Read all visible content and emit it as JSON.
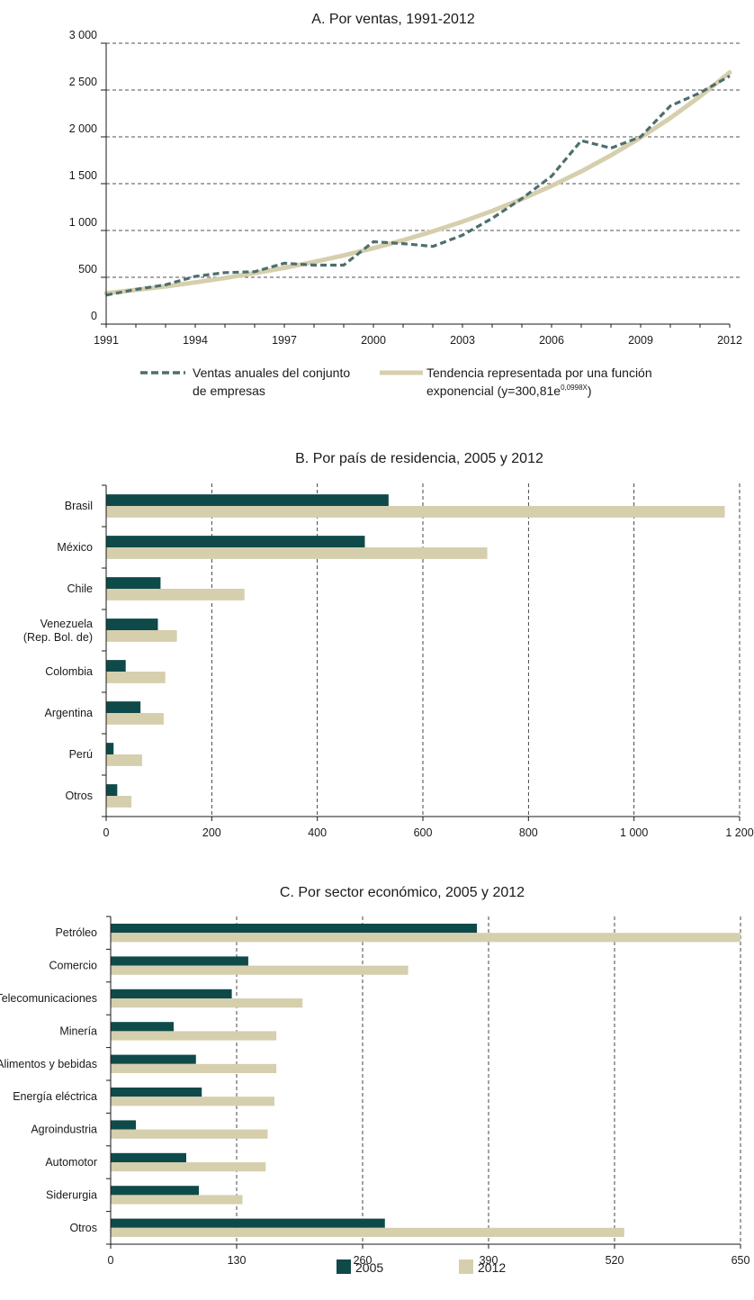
{
  "colors": {
    "series_2005": "#0f4a4a",
    "series_2012": "#d6cfad",
    "sales_line": "#4e6e6e",
    "trend_line": "#d6cfad",
    "axis": "#1a1a1a",
    "grid": "#1a1a1a"
  },
  "chart_data": [
    {
      "type": "line",
      "title": "A. Por ventas, 1991-2012",
      "xlabel": "",
      "ylabel": "",
      "x": [
        1991,
        1992,
        1993,
        1994,
        1995,
        1996,
        1997,
        1998,
        1999,
        2000,
        2001,
        2002,
        2003,
        2004,
        2005,
        2006,
        2007,
        2008,
        2009,
        2010,
        2011,
        2012
      ],
      "xticks": [
        "1991",
        "1994",
        "1997",
        "2000",
        "2003",
        "2006",
        "2009",
        "2012"
      ],
      "yticks": [
        "0",
        "500",
        "1 000",
        "1 500",
        "2 000",
        "2 500",
        "3 000"
      ],
      "ylim": [
        0,
        3000
      ],
      "xlim": [
        1991,
        2012
      ],
      "grid": "horizontal-dashed",
      "series": [
        {
          "name": "Ventas anuales del conjunto de empresas",
          "name_lines": [
            "Ventas anuales del conjunto",
            "de empresas"
          ],
          "style": "dashed",
          "values": [
            310,
            370,
            420,
            510,
            550,
            560,
            650,
            630,
            630,
            880,
            860,
            830,
            950,
            1130,
            1340,
            1580,
            1960,
            1880,
            2000,
            2330,
            2470,
            2650
          ]
        },
        {
          "name": "Tendencia representada por una función exponencial (y=300,81e0,0998X)",
          "name_line1": "Tendencia representada por una función",
          "name_line2_pre": "exponencial (y=300,81e",
          "name_line2_sup": "0,0998X",
          "name_line2_post": ")",
          "style": "solid",
          "values": [
            330,
            365,
            403,
            445,
            492,
            544,
            601,
            664,
            734,
            811,
            896,
            990,
            1094,
            1209,
            1336,
            1476,
            1631,
            1803,
            1992,
            2201,
            2432,
            2688
          ]
        }
      ],
      "legend_position": "bottom"
    },
    {
      "type": "bar",
      "orientation": "horizontal",
      "title": "B. Por país de residencia, 2005 y 2012",
      "categories": [
        "Brasil",
        "México",
        "Chile",
        "Venezuela (Rep. Bol. de)",
        "Colombia",
        "Argentina",
        "Perú",
        "Otros"
      ],
      "category_lines": [
        [
          "Brasil"
        ],
        [
          "México"
        ],
        [
          "Chile"
        ],
        [
          "Venezuela",
          "(Rep. Bol. de)"
        ],
        [
          "Colombia"
        ],
        [
          "Argentina"
        ],
        [
          "Perú"
        ],
        [
          "Otros"
        ]
      ],
      "xticks": [
        "0",
        "200",
        "400",
        "600",
        "800",
        "1 000",
        "1 200"
      ],
      "xlim": [
        0,
        1200
      ],
      "grid": "vertical-dashed",
      "series": [
        {
          "name": "2005",
          "values": [
            535,
            490,
            103,
            98,
            37,
            65,
            14,
            21
          ]
        },
        {
          "name": "2012",
          "values": [
            1172,
            722,
            262,
            134,
            112,
            109,
            68,
            48
          ]
        }
      ]
    },
    {
      "type": "bar",
      "orientation": "horizontal",
      "title": "C. Por sector económico, 2005 y 2012",
      "categories": [
        "Petróleo",
        "Comercio",
        "Telecomunicaciones",
        "Minería",
        "Alimentos y bebidas",
        "Energía eléctrica",
        "Agroindustria",
        "Automotor",
        "Siderurgia",
        "Otros"
      ],
      "xticks": [
        "0",
        "130",
        "260",
        "390",
        "520",
        "650"
      ],
      "xlim": [
        0,
        650
      ],
      "grid": "vertical-dashed",
      "series": [
        {
          "name": "2005",
          "values": [
            378,
            142,
            125,
            65,
            88,
            94,
            26,
            78,
            91,
            283
          ]
        },
        {
          "name": "2012",
          "values": [
            650,
            307,
            198,
            171,
            171,
            169,
            162,
            160,
            136,
            530
          ]
        }
      ],
      "legend": [
        "2005",
        "2012"
      ],
      "legend_position": "bottom"
    }
  ]
}
